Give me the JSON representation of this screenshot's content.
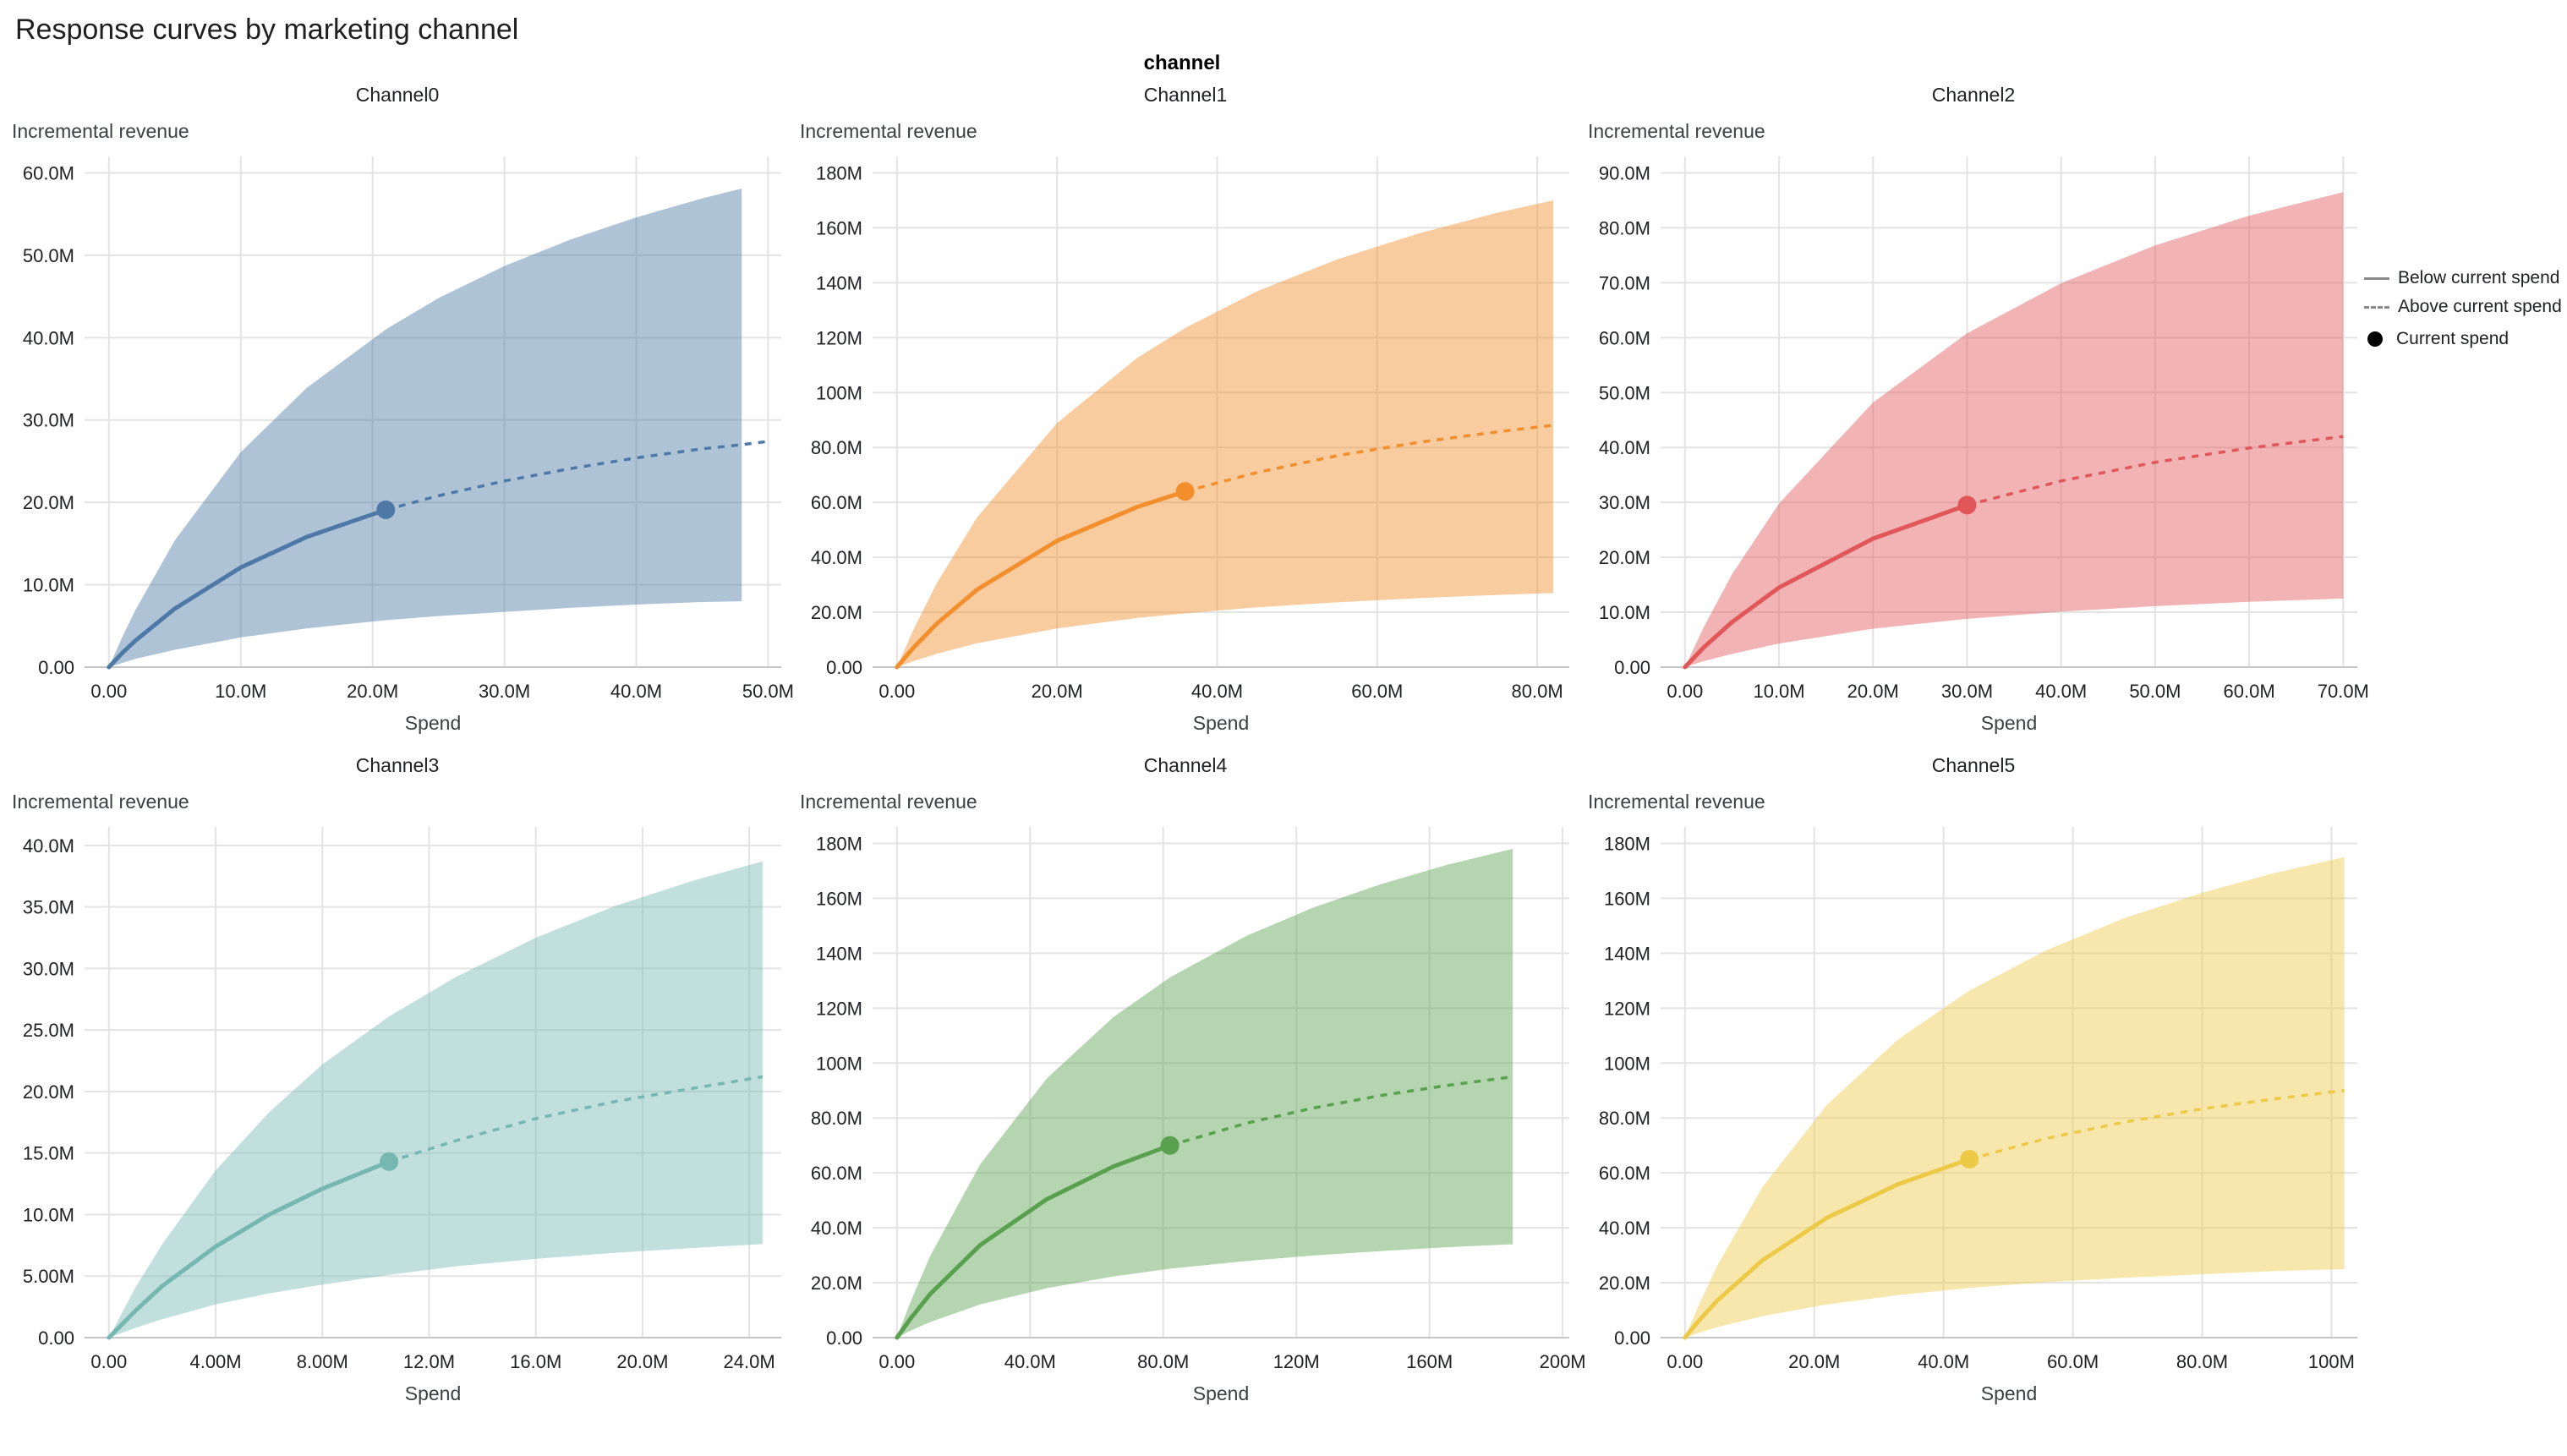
{
  "page": {
    "title": "Response curves by marketing channel",
    "facet_label": "channel"
  },
  "legend": {
    "position": "top-right",
    "items": [
      {
        "label": "Below current spend",
        "marker": "solid-line"
      },
      {
        "label": "Above current spend",
        "marker": "dashed-line"
      },
      {
        "label": "Current spend",
        "marker": "dot"
      }
    ]
  },
  "chart_data": [
    {
      "type": "line",
      "title": "Channel0",
      "xlabel": "Spend",
      "ylabel": "Incremental revenue",
      "color": "#4e79a7",
      "band_opacity": 0.45,
      "xlim": [
        0,
        51
      ],
      "ylim": [
        0,
        62
      ],
      "x_ticks": [
        0,
        10,
        20,
        30,
        40,
        50
      ],
      "x_tick_labels": [
        "0.00",
        "10.0M",
        "20.0M",
        "30.0M",
        "40.0M",
        "50.0M"
      ],
      "y_ticks": [
        0,
        10,
        20,
        30,
        40,
        50,
        60
      ],
      "y_tick_labels": [
        "0.00",
        "10.0M",
        "20.0M",
        "30.0M",
        "40.0M",
        "50.0M",
        "60.0M"
      ],
      "line": {
        "x": [
          0,
          1,
          2,
          5,
          10,
          15,
          21,
          25,
          30,
          35,
          40,
          45,
          48,
          50
        ],
        "y": [
          0,
          1.7,
          3.2,
          7.1,
          12.1,
          15.8,
          19.1,
          20.8,
          22.6,
          24.1,
          25.4,
          26.5,
          27.0,
          27.4
        ]
      },
      "band": {
        "x": [
          0,
          1,
          2,
          5,
          10,
          15,
          21,
          25,
          30,
          35,
          40,
          45,
          48
        ],
        "upper": [
          0,
          3.6,
          6.9,
          15.4,
          26.1,
          33.9,
          41.0,
          44.8,
          48.7,
          51.9,
          54.6,
          56.9,
          58.1
        ],
        "lower": [
          0,
          0.5,
          1.0,
          2.1,
          3.6,
          4.7,
          5.7,
          6.2,
          6.7,
          7.2,
          7.6,
          7.9,
          8.0
        ]
      },
      "current_spend": {
        "x": 21,
        "y": 19.1
      }
    },
    {
      "type": "line",
      "title": "Channel1",
      "xlabel": "Spend",
      "ylabel": "Incremental revenue",
      "color": "#f28e2b",
      "band_opacity": 0.45,
      "xlim": [
        0,
        84
      ],
      "ylim": [
        0,
        186
      ],
      "x_ticks": [
        0,
        20,
        40,
        60,
        80
      ],
      "x_tick_labels": [
        "0.00",
        "20.0M",
        "40.0M",
        "60.0M",
        "80.0M"
      ],
      "y_ticks": [
        0,
        20,
        40,
        60,
        80,
        100,
        120,
        140,
        160,
        180
      ],
      "y_tick_labels": [
        "0.00",
        "20.0M",
        "40.0M",
        "60.0M",
        "80.0M",
        "100M",
        "120M",
        "140M",
        "160M",
        "180M"
      ],
      "line": {
        "x": [
          0,
          2,
          5,
          10,
          20,
          30,
          36,
          45,
          55,
          65,
          75,
          82
        ],
        "y": [
          0,
          6.9,
          15.9,
          28.2,
          46.0,
          58.3,
          64.0,
          70.9,
          77.0,
          81.8,
          85.7,
          88.1
        ]
      },
      "band": {
        "x": [
          0,
          2,
          5,
          10,
          20,
          30,
          36,
          45,
          55,
          65,
          75,
          82
        ],
        "upper": [
          0,
          13.3,
          30.7,
          54.5,
          88.9,
          112.6,
          123.5,
          136.9,
          148.5,
          157.8,
          165.5,
          170.0
        ],
        "lower": [
          0,
          2.1,
          4.9,
          8.7,
          14.1,
          17.9,
          19.6,
          21.8,
          23.6,
          25.1,
          26.3,
          27.0
        ]
      },
      "current_spend": {
        "x": 36,
        "y": 64.0
      }
    },
    {
      "type": "line",
      "title": "Channel2",
      "xlabel": "Spend",
      "ylabel": "Incremental revenue",
      "color": "#e15759",
      "band_opacity": 0.45,
      "xlim": [
        0,
        71.5
      ],
      "ylim": [
        0,
        93
      ],
      "x_ticks": [
        0,
        10,
        20,
        30,
        40,
        50,
        60,
        70
      ],
      "x_tick_labels": [
        "0.00",
        "10.0M",
        "20.0M",
        "30.0M",
        "40.0M",
        "50.0M",
        "60.0M",
        "70.0M"
      ],
      "y_ticks": [
        0,
        10,
        20,
        30,
        40,
        50,
        60,
        70,
        80,
        90
      ],
      "y_tick_labels": [
        "0.00",
        "10.0M",
        "20.0M",
        "30.0M",
        "40.0M",
        "50.0M",
        "60.0M",
        "70.0M",
        "80.0M",
        "90.0M"
      ],
      "line": {
        "x": [
          0,
          2,
          5,
          10,
          20,
          30,
          40,
          50,
          60,
          70
        ],
        "y": [
          0,
          3.6,
          8.2,
          14.5,
          23.4,
          29.5,
          33.9,
          37.3,
          39.9,
          42.0
        ]
      },
      "band": {
        "x": [
          0,
          2,
          5,
          10,
          20,
          30,
          40,
          50,
          60,
          70
        ],
        "upper": [
          0,
          7.3,
          16.9,
          29.8,
          48.2,
          60.8,
          69.9,
          76.8,
          82.2,
          86.5
        ],
        "lower": [
          0,
          1.1,
          2.4,
          4.3,
          7.0,
          8.8,
          10.1,
          11.1,
          11.9,
          12.5
        ]
      },
      "current_spend": {
        "x": 30,
        "y": 29.5
      }
    },
    {
      "type": "line",
      "title": "Channel3",
      "xlabel": "Spend",
      "ylabel": "Incremental revenue",
      "color": "#76b7b2",
      "band_opacity": 0.45,
      "xlim": [
        0,
        25.2
      ],
      "ylim": [
        0,
        41.5
      ],
      "x_ticks": [
        0,
        4,
        8,
        12,
        16,
        20,
        24
      ],
      "x_tick_labels": [
        "0.00",
        "4.00M",
        "8.00M",
        "12.0M",
        "16.0M",
        "20.0M",
        "24.0M"
      ],
      "y_ticks": [
        0,
        5,
        10,
        15,
        20,
        25,
        30,
        35,
        40
      ],
      "y_tick_labels": [
        "0.00",
        "5.00M",
        "10.0M",
        "15.0M",
        "20.0M",
        "25.0M",
        "30.0M",
        "35.0M",
        "40.0M"
      ],
      "line": {
        "x": [
          0,
          1,
          2,
          4,
          6,
          8,
          10.5,
          13,
          16,
          19,
          22,
          24.5
        ],
        "y": [
          0,
          2.2,
          4.2,
          7.4,
          10.0,
          12.1,
          14.3,
          16.0,
          17.8,
          19.2,
          20.3,
          21.2
        ]
      },
      "band": {
        "x": [
          0,
          1,
          2,
          4,
          6,
          8,
          10.5,
          13,
          16,
          19,
          22,
          24.5
        ],
        "upper": [
          0,
          4.1,
          7.6,
          13.6,
          18.3,
          22.2,
          26.1,
          29.3,
          32.5,
          35.1,
          37.2,
          38.7
        ],
        "lower": [
          0,
          0.8,
          1.5,
          2.7,
          3.6,
          4.3,
          5.1,
          5.8,
          6.4,
          6.9,
          7.3,
          7.6
        ]
      },
      "current_spend": {
        "x": 10.5,
        "y": 14.3
      }
    },
    {
      "type": "line",
      "title": "Channel4",
      "xlabel": "Spend",
      "ylabel": "Incremental revenue",
      "color": "#59a14f",
      "band_opacity": 0.45,
      "xlim": [
        0,
        202
      ],
      "ylim": [
        0,
        186
      ],
      "x_ticks": [
        0,
        40,
        80,
        120,
        160,
        200
      ],
      "x_tick_labels": [
        "0.00",
        "40.0M",
        "80.0M",
        "120M",
        "160M",
        "200M"
      ],
      "y_ticks": [
        0,
        20,
        40,
        60,
        80,
        100,
        120,
        140,
        160,
        180
      ],
      "y_tick_labels": [
        "0.00",
        "20.0M",
        "40.0M",
        "60.0M",
        "80.0M",
        "100M",
        "120M",
        "140M",
        "160M",
        "180M"
      ],
      "line": {
        "x": [
          0,
          4,
          10,
          25,
          45,
          65,
          82,
          105,
          125,
          145,
          165,
          185
        ],
        "y": [
          0,
          6.8,
          15.9,
          33.7,
          50.4,
          62.3,
          70.0,
          78.1,
          83.6,
          88.1,
          91.8,
          95.0
        ]
      },
      "band": {
        "x": [
          0,
          4,
          10,
          25,
          45,
          65,
          82,
          105,
          125,
          145,
          165,
          185
        ],
        "upper": [
          0,
          12.8,
          29.8,
          63.1,
          94.4,
          116.7,
          131.2,
          146.3,
          156.6,
          165.0,
          172.1,
          178.0
        ],
        "lower": [
          0,
          2.5,
          5.7,
          12.1,
          18.0,
          22.3,
          25.1,
          27.9,
          29.9,
          31.5,
          32.9,
          34.0
        ]
      },
      "current_spend": {
        "x": 82,
        "y": 70.0
      }
    },
    {
      "type": "line",
      "title": "Channel5",
      "xlabel": "Spend",
      "ylabel": "Incremental revenue",
      "color": "#edc948",
      "band_opacity": 0.45,
      "xlim": [
        0,
        104
      ],
      "ylim": [
        0,
        186
      ],
      "x_ticks": [
        0,
        20,
        40,
        60,
        80,
        100
      ],
      "x_tick_labels": [
        "0.00",
        "20.0M",
        "40.0M",
        "60.0M",
        "80.0M",
        "100M"
      ],
      "y_ticks": [
        0,
        20,
        40,
        60,
        80,
        100,
        120,
        140,
        160,
        180
      ],
      "y_tick_labels": [
        "0.00",
        "20.0M",
        "40.0M",
        "60.0M",
        "80.0M",
        "100M",
        "120M",
        "140M",
        "160M",
        "180M"
      ],
      "line": {
        "x": [
          0,
          2,
          5,
          12,
          22,
          33,
          44,
          56,
          68,
          80,
          91,
          102
        ],
        "y": [
          0,
          5.8,
          13.5,
          28.2,
          43.7,
          55.9,
          65.0,
          72.6,
          78.5,
          83.3,
          86.9,
          90.0
        ]
      },
      "band": {
        "x": [
          0,
          2,
          5,
          12,
          22,
          33,
          44,
          56,
          68,
          80,
          91,
          102
        ],
        "upper": [
          0,
          11.2,
          26.3,
          54.9,
          84.9,
          108.7,
          126.4,
          141.2,
          152.8,
          162.0,
          169.1,
          175.0
        ],
        "lower": [
          0,
          1.6,
          3.8,
          7.8,
          12.1,
          15.5,
          18.1,
          20.2,
          21.8,
          23.1,
          24.2,
          25.0
        ]
      },
      "current_spend": {
        "x": 44,
        "y": 65.0
      }
    }
  ]
}
